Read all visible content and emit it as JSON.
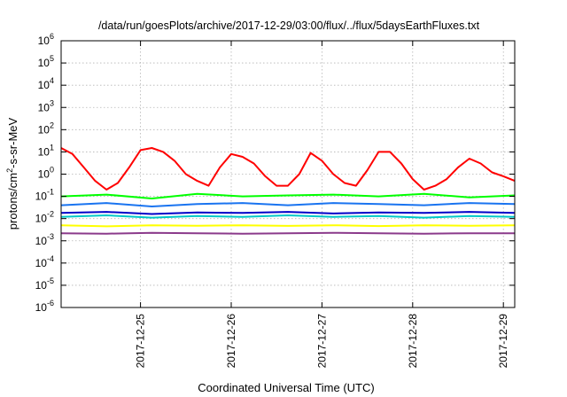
{
  "chart_data": {
    "type": "line",
    "title": "/data/run/goesPlots/archive/2017-12-29/03:00/flux/../flux/5daysEarthFluxes.txt",
    "xlabel": "Coordinated Universal Time (UTC)",
    "ylabel": "protons/cm²-s-sr-MeV",
    "ylabel_parts": {
      "base": "protons/cm",
      "sup": "2",
      "rest": "-s-sr-MeV"
    },
    "x_start": "2017-12-24 03:00",
    "x_end": "2017-12-29 03:00",
    "xlim": [
      "2017-12-24 03:00",
      "2017-12-29 03:00"
    ],
    "x_ticks": [
      "2017-12-25",
      "2017-12-26",
      "2017-12-27",
      "2017-12-28",
      "2017-12-29"
    ],
    "y_scale": "log",
    "ylim": [
      1e-06,
      1000000.0
    ],
    "y_ticks": [
      {
        "base": "10",
        "exp": "-6"
      },
      {
        "base": "10",
        "exp": "-5"
      },
      {
        "base": "10",
        "exp": "-4"
      },
      {
        "base": "10",
        "exp": "-3"
      },
      {
        "base": "10",
        "exp": "-2"
      },
      {
        "base": "10",
        "exp": "-1"
      },
      {
        "base": "10",
        "exp": "0"
      },
      {
        "base": "10",
        "exp": "1"
      },
      {
        "base": "10",
        "exp": "2"
      },
      {
        "base": "10",
        "exp": "3"
      },
      {
        "base": "10",
        "exp": "4"
      },
      {
        "base": "10",
        "exp": "5"
      },
      {
        "base": "10",
        "exp": "6"
      }
    ],
    "grid": true,
    "series": [
      {
        "color": "#ff0000",
        "x": [
          "2017-12-24 03:00",
          "2017-12-24 06:00",
          "2017-12-24 09:00",
          "2017-12-24 12:00",
          "2017-12-24 15:00",
          "2017-12-24 18:00",
          "2017-12-24 21:00",
          "2017-12-25 00:00",
          "2017-12-25 03:00",
          "2017-12-25 06:00",
          "2017-12-25 09:00",
          "2017-12-25 12:00",
          "2017-12-25 15:00",
          "2017-12-25 18:00",
          "2017-12-25 21:00",
          "2017-12-26 00:00",
          "2017-12-26 03:00",
          "2017-12-26 06:00",
          "2017-12-26 09:00",
          "2017-12-26 12:00",
          "2017-12-26 15:00",
          "2017-12-26 18:00",
          "2017-12-26 21:00",
          "2017-12-27 00:00",
          "2017-12-27 03:00",
          "2017-12-27 06:00",
          "2017-12-27 09:00",
          "2017-12-27 12:00",
          "2017-12-27 15:00",
          "2017-12-27 18:00",
          "2017-12-27 21:00",
          "2017-12-28 00:00",
          "2017-12-28 03:00",
          "2017-12-28 06:00",
          "2017-12-28 09:00",
          "2017-12-28 12:00",
          "2017-12-28 15:00",
          "2017-12-28 18:00",
          "2017-12-28 21:00",
          "2017-12-29 00:00",
          "2017-12-29 03:00"
        ],
        "values": [
          15,
          8,
          2,
          0.5,
          0.2,
          0.4,
          2,
          12,
          15,
          10,
          4,
          1,
          0.5,
          0.3,
          2,
          8,
          6,
          3,
          0.8,
          0.3,
          0.3,
          1,
          9,
          4,
          1,
          0.4,
          0.3,
          1.5,
          10,
          10,
          3,
          0.6,
          0.2,
          0.3,
          0.6,
          2,
          5,
          3,
          1.2,
          0.8,
          0.5
        ]
      },
      {
        "color": "#00ff00",
        "x": [
          "2017-12-24 03:00",
          "2017-12-24 15:00",
          "2017-12-25 03:00",
          "2017-12-25 15:00",
          "2017-12-26 03:00",
          "2017-12-26 15:00",
          "2017-12-27 03:00",
          "2017-12-27 15:00",
          "2017-12-28 03:00",
          "2017-12-28 15:00",
          "2017-12-29 03:00"
        ],
        "values": [
          0.1,
          0.12,
          0.08,
          0.13,
          0.1,
          0.11,
          0.12,
          0.1,
          0.13,
          0.09,
          0.11
        ]
      },
      {
        "color": "#1a74f0",
        "x": [
          "2017-12-24 03:00",
          "2017-12-24 15:00",
          "2017-12-25 03:00",
          "2017-12-25 15:00",
          "2017-12-26 03:00",
          "2017-12-26 15:00",
          "2017-12-27 03:00",
          "2017-12-27 15:00",
          "2017-12-28 03:00",
          "2017-12-28 15:00",
          "2017-12-29 03:00"
        ],
        "values": [
          0.04,
          0.05,
          0.035,
          0.045,
          0.05,
          0.04,
          0.05,
          0.045,
          0.04,
          0.05,
          0.045
        ]
      },
      {
        "color": "#00c8c8",
        "x": [
          "2017-12-24 03:00",
          "2017-12-24 15:00",
          "2017-12-25 03:00",
          "2017-12-25 15:00",
          "2017-12-26 03:00",
          "2017-12-26 15:00",
          "2017-12-27 03:00",
          "2017-12-27 15:00",
          "2017-12-28 03:00",
          "2017-12-28 15:00",
          "2017-12-29 03:00"
        ],
        "values": [
          0.012,
          0.014,
          0.011,
          0.013,
          0.012,
          0.014,
          0.012,
          0.013,
          0.011,
          0.013,
          0.012
        ]
      },
      {
        "color": "#0000c8",
        "x": [
          "2017-12-24 03:00",
          "2017-12-24 15:00",
          "2017-12-25 03:00",
          "2017-12-25 15:00",
          "2017-12-26 03:00",
          "2017-12-26 15:00",
          "2017-12-27 03:00",
          "2017-12-27 15:00",
          "2017-12-28 03:00",
          "2017-12-28 15:00",
          "2017-12-29 03:00"
        ],
        "values": [
          0.018,
          0.02,
          0.016,
          0.019,
          0.018,
          0.02,
          0.017,
          0.019,
          0.018,
          0.02,
          0.018
        ]
      },
      {
        "color": "#ffff00",
        "x": [
          "2017-12-24 03:00",
          "2017-12-24 15:00",
          "2017-12-25 03:00",
          "2017-12-25 15:00",
          "2017-12-26 03:00",
          "2017-12-26 15:00",
          "2017-12-27 03:00",
          "2017-12-27 15:00",
          "2017-12-28 03:00",
          "2017-12-28 15:00",
          "2017-12-29 03:00"
        ],
        "values": [
          0.005,
          0.0045,
          0.005,
          0.0048,
          0.005,
          0.0047,
          0.005,
          0.0046,
          0.005,
          0.0048,
          0.005
        ]
      },
      {
        "color": "#8b3a8b",
        "x": [
          "2017-12-24 03:00",
          "2017-12-24 15:00",
          "2017-12-25 03:00",
          "2017-12-25 15:00",
          "2017-12-26 03:00",
          "2017-12-26 15:00",
          "2017-12-27 03:00",
          "2017-12-27 15:00",
          "2017-12-28 03:00",
          "2017-12-28 15:00",
          "2017-12-29 03:00"
        ],
        "values": [
          0.0022,
          0.0021,
          0.0023,
          0.0022,
          0.0021,
          0.0022,
          0.0023,
          0.0022,
          0.0021,
          0.0022,
          0.0022
        ]
      }
    ]
  }
}
